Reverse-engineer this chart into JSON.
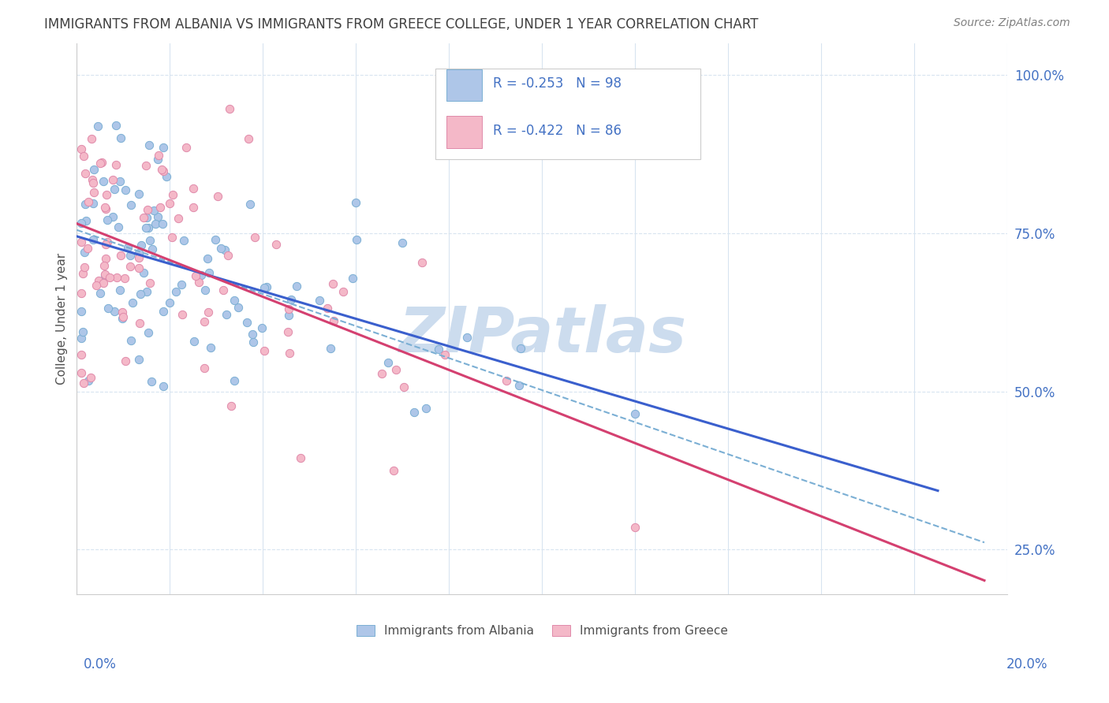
{
  "title": "IMMIGRANTS FROM ALBANIA VS IMMIGRANTS FROM GREECE COLLEGE, UNDER 1 YEAR CORRELATION CHART",
  "source": "Source: ZipAtlas.com",
  "legend_blue_label": "Immigrants from Albania",
  "legend_pink_label": "Immigrants from Greece",
  "blue_R": -0.253,
  "blue_N": 98,
  "pink_R": -0.422,
  "pink_N": 86,
  "blue_color": "#aec6e8",
  "blue_edge_color": "#7bafd4",
  "pink_color": "#f4b8c8",
  "pink_edge_color": "#e08aaa",
  "blue_line_color": "#3a5fcd",
  "pink_line_color": "#d44070",
  "dashed_line_color": "#7bafd4",
  "watermark_color": "#ccdcee",
  "title_color": "#404040",
  "axis_color": "#4472c4",
  "background_color": "#ffffff",
  "grid_color": "#d8e4f0",
  "xlim": [
    0.0,
    0.2
  ],
  "ylim": [
    0.18,
    1.05
  ]
}
